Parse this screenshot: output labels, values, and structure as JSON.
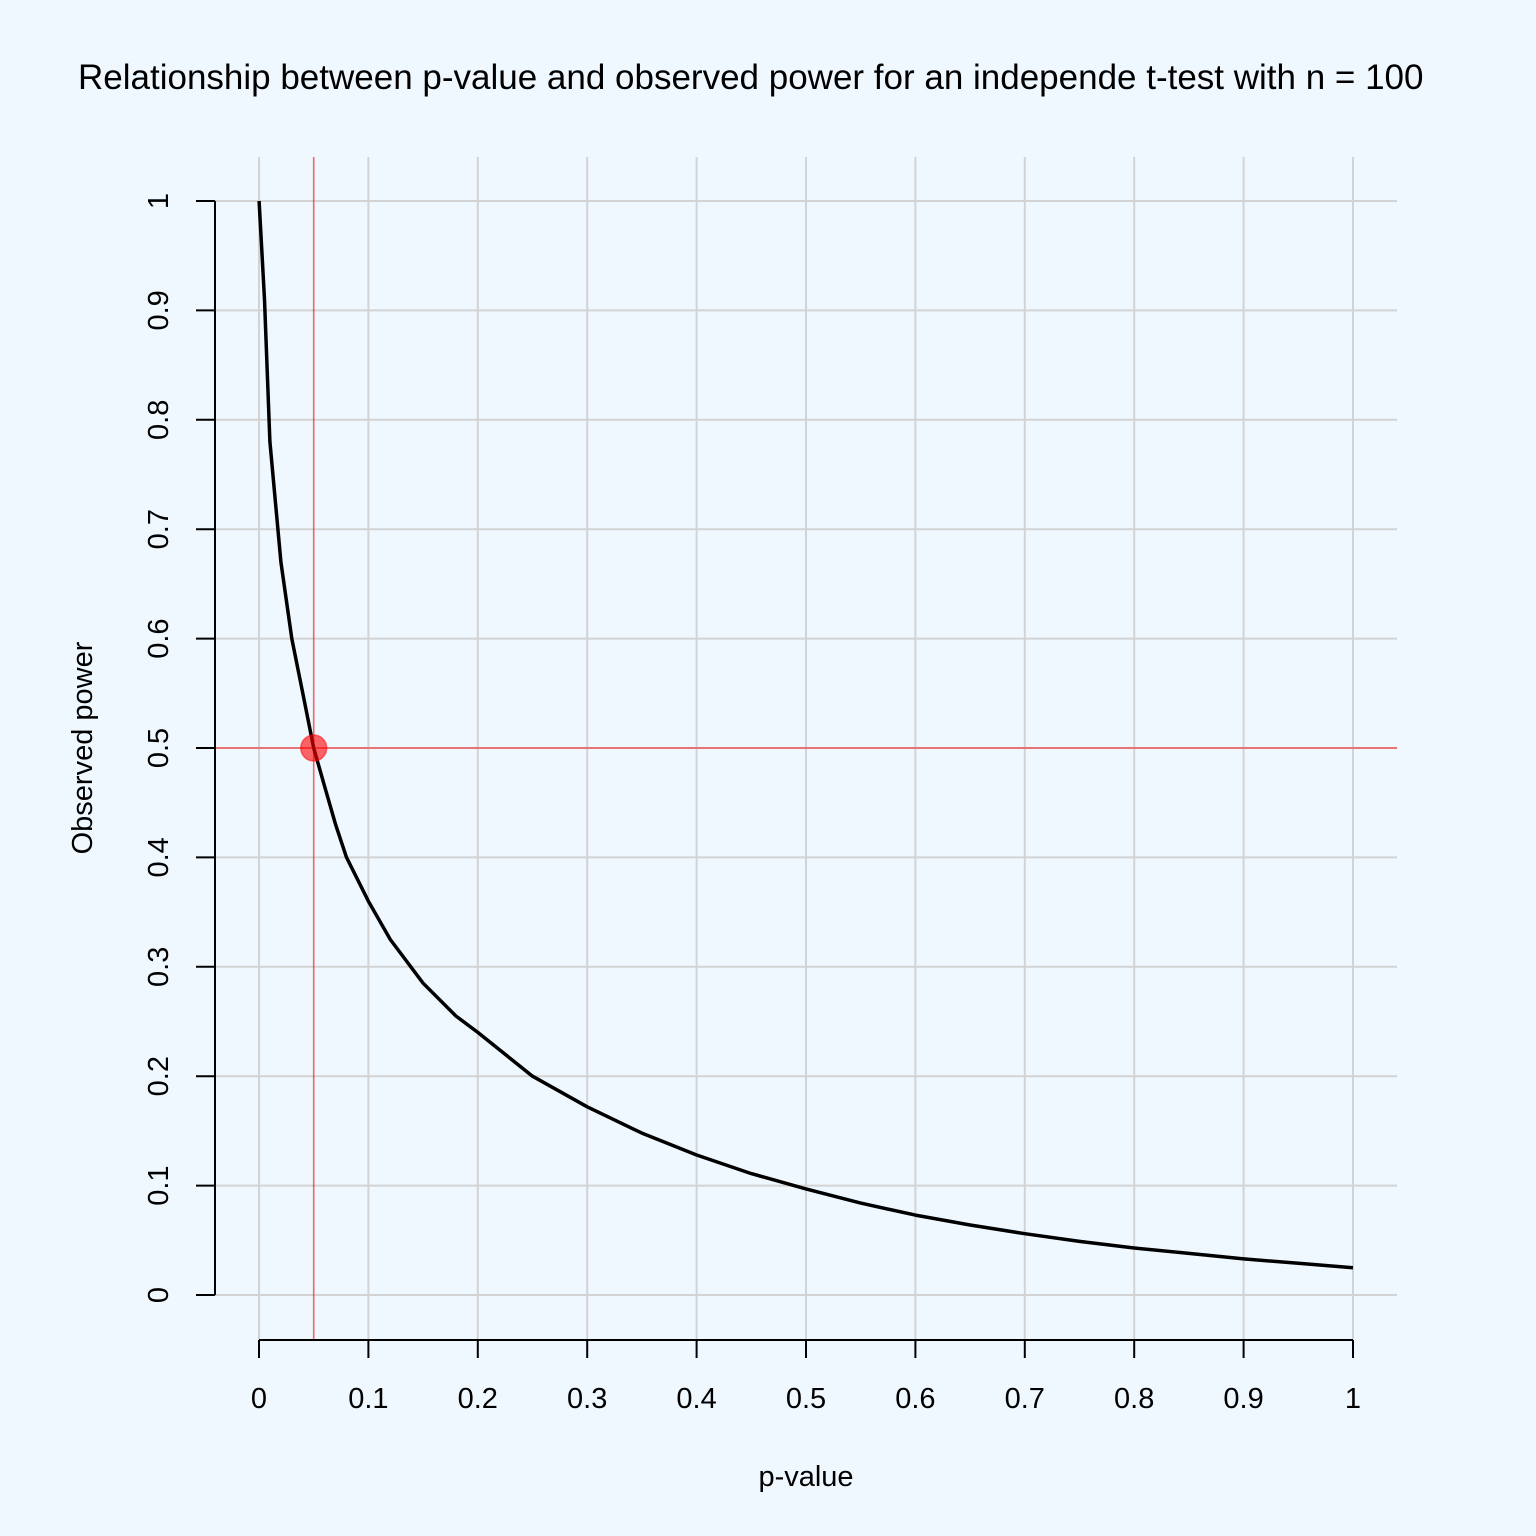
{
  "chart_data": {
    "type": "line",
    "title": "Relationship between p-value and observed power for an independe t-test with n = 100",
    "xlabel": "p-value",
    "ylabel": "Observed power",
    "xlim": [
      0,
      1
    ],
    "ylim": [
      0,
      1
    ],
    "x_ticks": [
      "0",
      "0.1",
      "0.2",
      "0.3",
      "0.4",
      "0.5",
      "0.6",
      "0.7",
      "0.8",
      "0.9",
      "1"
    ],
    "y_ticks": [
      "0",
      "0.1",
      "0.2",
      "0.3",
      "0.4",
      "0.5",
      "0.6",
      "0.7",
      "0.8",
      "0.9",
      "1"
    ],
    "grid": true,
    "series": [
      {
        "color": "#000000",
        "x": [
          0.0001,
          0.005,
          0.01,
          0.02,
          0.03,
          0.04,
          0.05,
          0.06,
          0.07,
          0.08,
          0.1,
          0.12,
          0.15,
          0.18,
          0.2,
          0.25,
          0.3,
          0.35,
          0.4,
          0.45,
          0.5,
          0.55,
          0.6,
          0.65,
          0.7,
          0.75,
          0.8,
          0.85,
          0.9,
          0.95,
          1.0
        ],
        "y": [
          1.0,
          0.91,
          0.78,
          0.67,
          0.6,
          0.55,
          0.5,
          0.465,
          0.43,
          0.4,
          0.36,
          0.325,
          0.285,
          0.255,
          0.24,
          0.2,
          0.172,
          0.148,
          0.128,
          0.111,
          0.097,
          0.084,
          0.073,
          0.064,
          0.056,
          0.049,
          0.043,
          0.038,
          0.033,
          0.029,
          0.025
        ]
      }
    ],
    "reference": {
      "x": 0.05,
      "y": 0.5,
      "color": "#ff0000"
    }
  }
}
